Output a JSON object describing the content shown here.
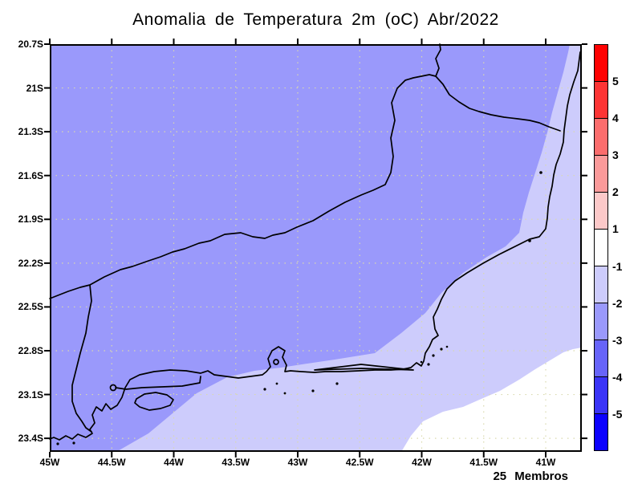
{
  "title": "Anomalia de Temperatura 2m (oC) Abr/2022",
  "members_label": "25 Membros",
  "map": {
    "lat_tick_labels": [
      "20.7S",
      "21S",
      "21.3S",
      "21.6S",
      "21.9S",
      "22.2S",
      "22.5S",
      "22.8S",
      "23.1S",
      "23.4S"
    ],
    "lon_tick_labels": [
      "45W",
      "44.5W",
      "44W",
      "43.5W",
      "43W",
      "42.5W",
      "42W",
      "41.5W",
      "41W"
    ],
    "fill_colors": {
      "anomaly_minus3_to_minus2": "#9a99fb",
      "anomaly_minus2_to_minus1": "#cdccfc",
      "anomaly_minus1_to_plus1": "#ffffff"
    },
    "gridline_color": "#d9d9ae",
    "coastline_color": "#000000",
    "frame_color": "#000000"
  },
  "colorbar": {
    "tick_labels": [
      "5",
      "4",
      "3",
      "2",
      "1",
      "-1",
      "-2",
      "-3",
      "-4",
      "-5"
    ],
    "segment_colors": [
      "#fe0202",
      "#fd3535",
      "#fb6d6d",
      "#fa9a9a",
      "#fcc9c9",
      "#ffffff",
      "#cdccfc",
      "#9a99fb",
      "#6764f9",
      "#3a34f7",
      "#0c02fe"
    ]
  },
  "chart_data": {
    "type": "heatmap",
    "title": "Anomalia de Temperatura 2m (oC) Abr/2022",
    "variable": "2 m temperature anomaly",
    "units": "oC",
    "period": "Abr/2022",
    "annotation": "25 Membros",
    "lat_axis": {
      "ticks": [
        "20.7S",
        "21S",
        "21.3S",
        "21.6S",
        "21.9S",
        "22.2S",
        "22.5S",
        "22.8S",
        "23.1S",
        "23.4S"
      ],
      "range": [
        "20.7S",
        "23.5S"
      ]
    },
    "lon_axis": {
      "ticks": [
        "45W",
        "44.5W",
        "44W",
        "43.5W",
        "43W",
        "42.5W",
        "42W",
        "41.5W",
        "41W"
      ],
      "range": [
        "45W",
        "40.7W"
      ]
    },
    "contour_levels": [
      -5,
      -4,
      -3,
      -2,
      -1,
      1,
      2,
      3,
      4,
      5
    ],
    "legend_position": "right",
    "grid": true,
    "observed_regions": [
      {
        "area": "interior / northwest (most of map, Rio de Janeiro state and inland)",
        "anomaly_range": "-3 to -2"
      },
      {
        "area": "coastal band toward southeast and east coast strip",
        "anomaly_range": "-2 to -1"
      },
      {
        "area": "far southeast offshore corner",
        "anomaly_range": "-1 to +1"
      }
    ]
  }
}
